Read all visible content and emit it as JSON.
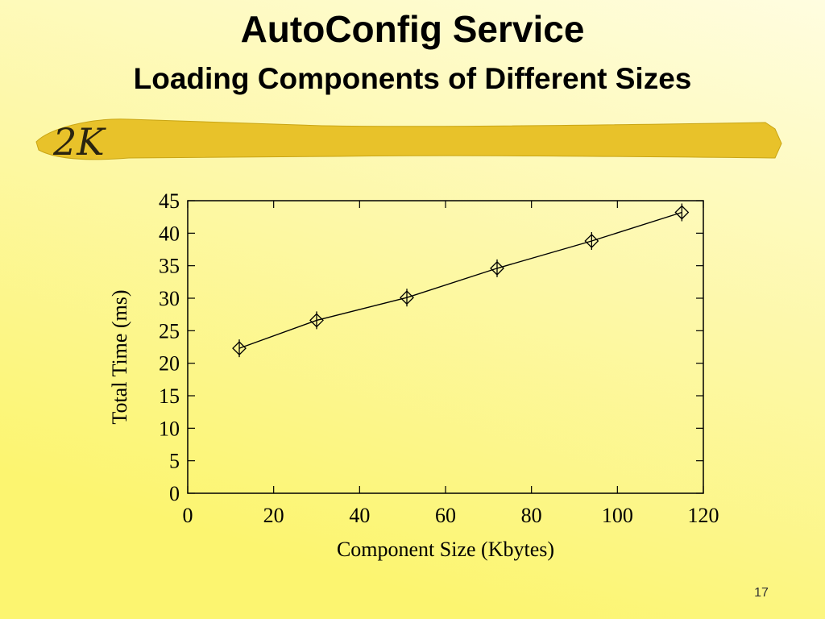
{
  "slide": {
    "title": "AutoConfig Service",
    "subtitle": "Loading Components of Different Sizes",
    "logo": "2K",
    "page_number": "17"
  },
  "chart_data": {
    "type": "line",
    "x_label": "Component Size (Kbytes)",
    "y_label": "Total Time (ms)",
    "x": [
      12,
      30,
      51,
      72,
      94,
      115
    ],
    "values": [
      22.3,
      26.6,
      30.1,
      34.6,
      38.8,
      43.2
    ],
    "color": "#000000",
    "marker": "diamond",
    "xlim": [
      0,
      120
    ],
    "xticks": [
      0,
      20,
      40,
      60,
      80,
      100,
      120
    ],
    "ylim": [
      0,
      45
    ],
    "yticks": [
      0,
      5,
      10,
      15,
      20,
      25,
      30,
      35,
      40,
      45
    ]
  }
}
